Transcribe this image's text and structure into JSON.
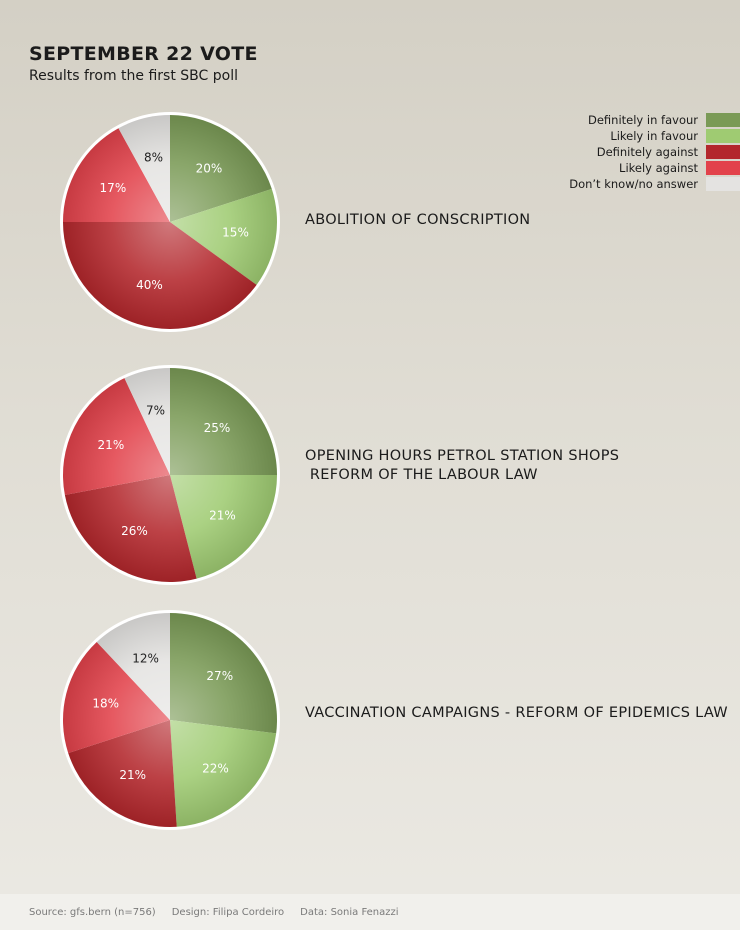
{
  "header": {
    "title": "SEPTEMBER 22 VOTE",
    "subtitle": "Results from the first SBC poll"
  },
  "legend": [
    {
      "label": "Definitely in favour",
      "color": "#7a9a56"
    },
    {
      "label": "Likely in favour",
      "color": "#9fcb72"
    },
    {
      "label": "Definitely against",
      "color": "#b3272c"
    },
    {
      "label": "Likely against",
      "color": "#e2424b"
    },
    {
      "label": "Don’t know/no answer",
      "color": "#e4e3e1"
    }
  ],
  "chart_data": [
    {
      "type": "pie",
      "title": "ABOLITION OF CONSCRIPTION",
      "slices": [
        {
          "category": "Definitely in favour",
          "value": 20
        },
        {
          "category": "Likely in favour",
          "value": 15
        },
        {
          "category": "Definitely against",
          "value": 40
        },
        {
          "category": "Likely against",
          "value": 17
        },
        {
          "category": "Don’t know/no answer",
          "value": 8
        }
      ]
    },
    {
      "type": "pie",
      "title": "OPENING HOURS PETROL STATION SHOPS\n REFORM OF THE LABOUR LAW",
      "slices": [
        {
          "category": "Definitely in favour",
          "value": 25
        },
        {
          "category": "Likely in favour",
          "value": 21
        },
        {
          "category": "Definitely against",
          "value": 26
        },
        {
          "category": "Likely against",
          "value": 21
        },
        {
          "category": "Don’t know/no answer",
          "value": 7
        }
      ]
    },
    {
      "type": "pie",
      "title": "VACCINATION CAMPAIGNS - REFORM OF EPIDEMICS LAW",
      "slices": [
        {
          "category": "Definitely in favour",
          "value": 27
        },
        {
          "category": "Likely in favour",
          "value": 22
        },
        {
          "category": "Definitely against",
          "value": 21
        },
        {
          "category": "Likely against",
          "value": 18
        },
        {
          "category": "Don’t know/no answer",
          "value": 12
        }
      ]
    }
  ],
  "footer": {
    "source": "Source: gfs.bern (n=756)",
    "design": "Design: Filipa Cordeiro",
    "data": "Data: Sonia Fenazzi"
  }
}
